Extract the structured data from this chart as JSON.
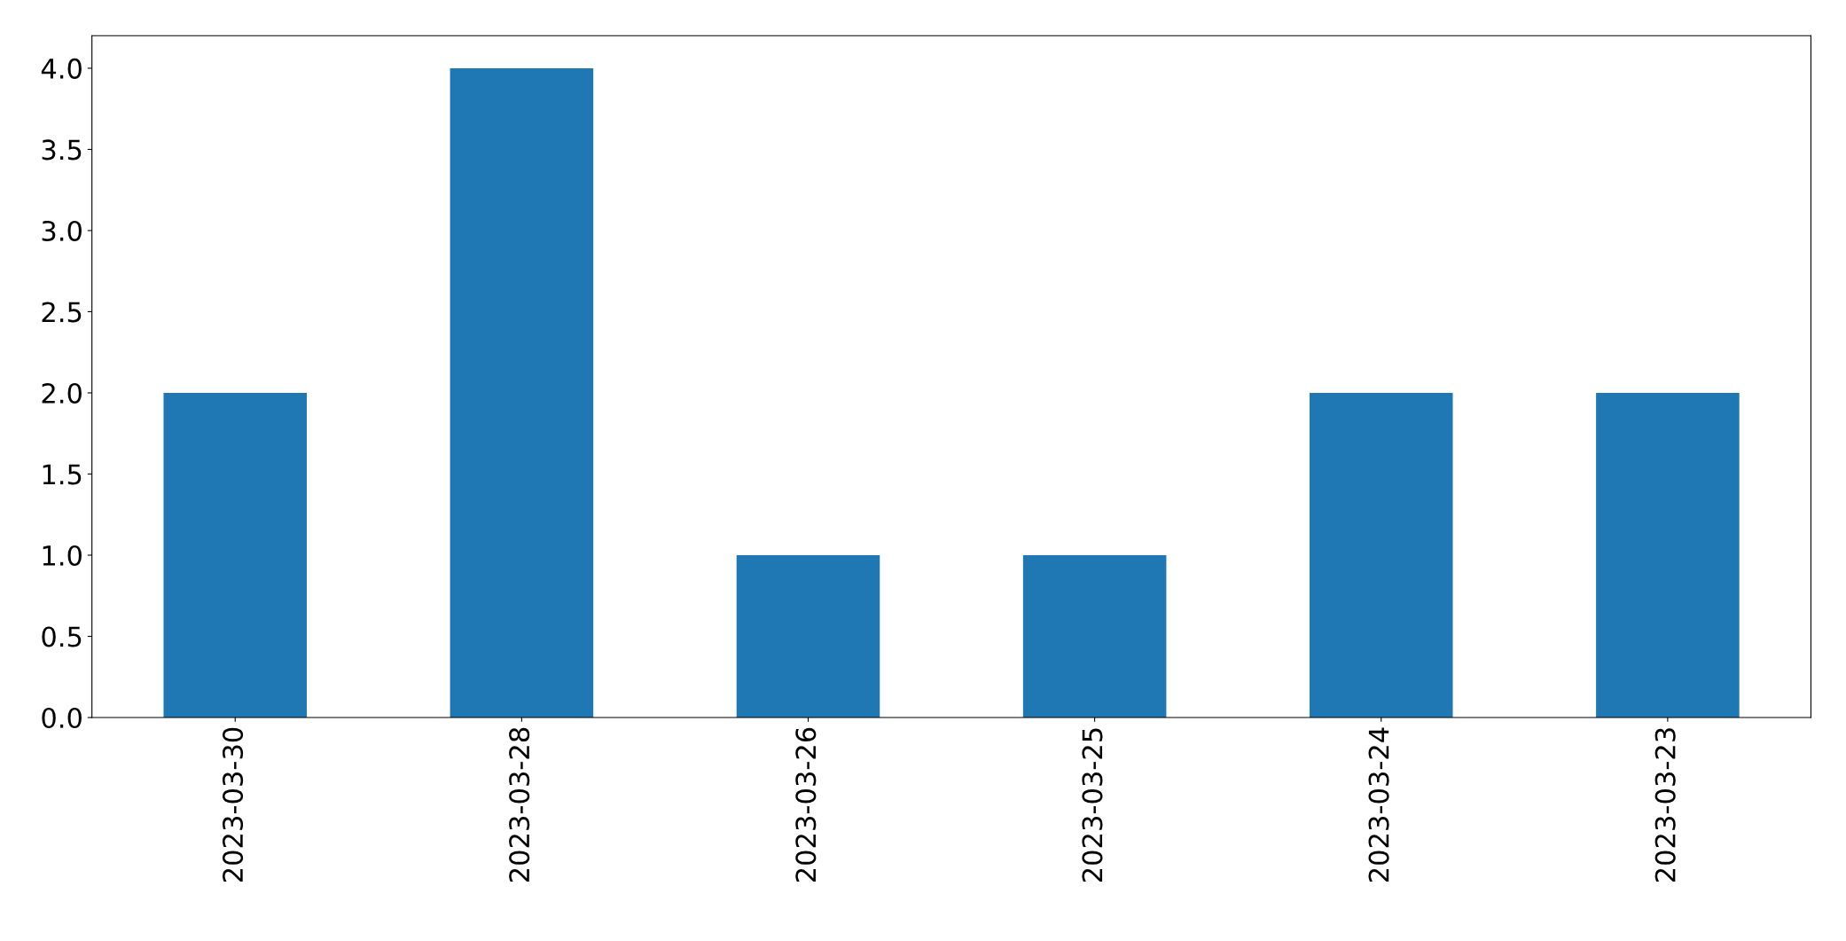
{
  "chart_data": {
    "type": "bar",
    "categories": [
      "2023-03-30",
      "2023-03-28",
      "2023-03-26",
      "2023-03-25",
      "2023-03-24",
      "2023-03-23"
    ],
    "values": [
      2,
      4,
      1,
      1,
      2,
      2
    ],
    "color": "#1f77b4",
    "ylim": [
      0,
      4.2
    ],
    "yticks": [
      {
        "value": 0,
        "label": "0.0"
      },
      {
        "value": 0.5,
        "label": "0.5"
      },
      {
        "value": 1,
        "label": "1.0"
      },
      {
        "value": 1.5,
        "label": "1.5"
      },
      {
        "value": 2,
        "label": "2.0"
      },
      {
        "value": 2.5,
        "label": "2.5"
      },
      {
        "value": 3,
        "label": "3.0"
      },
      {
        "value": 3.5,
        "label": "3.5"
      },
      {
        "value": 4,
        "label": "4.0"
      }
    ],
    "grid": false
  }
}
